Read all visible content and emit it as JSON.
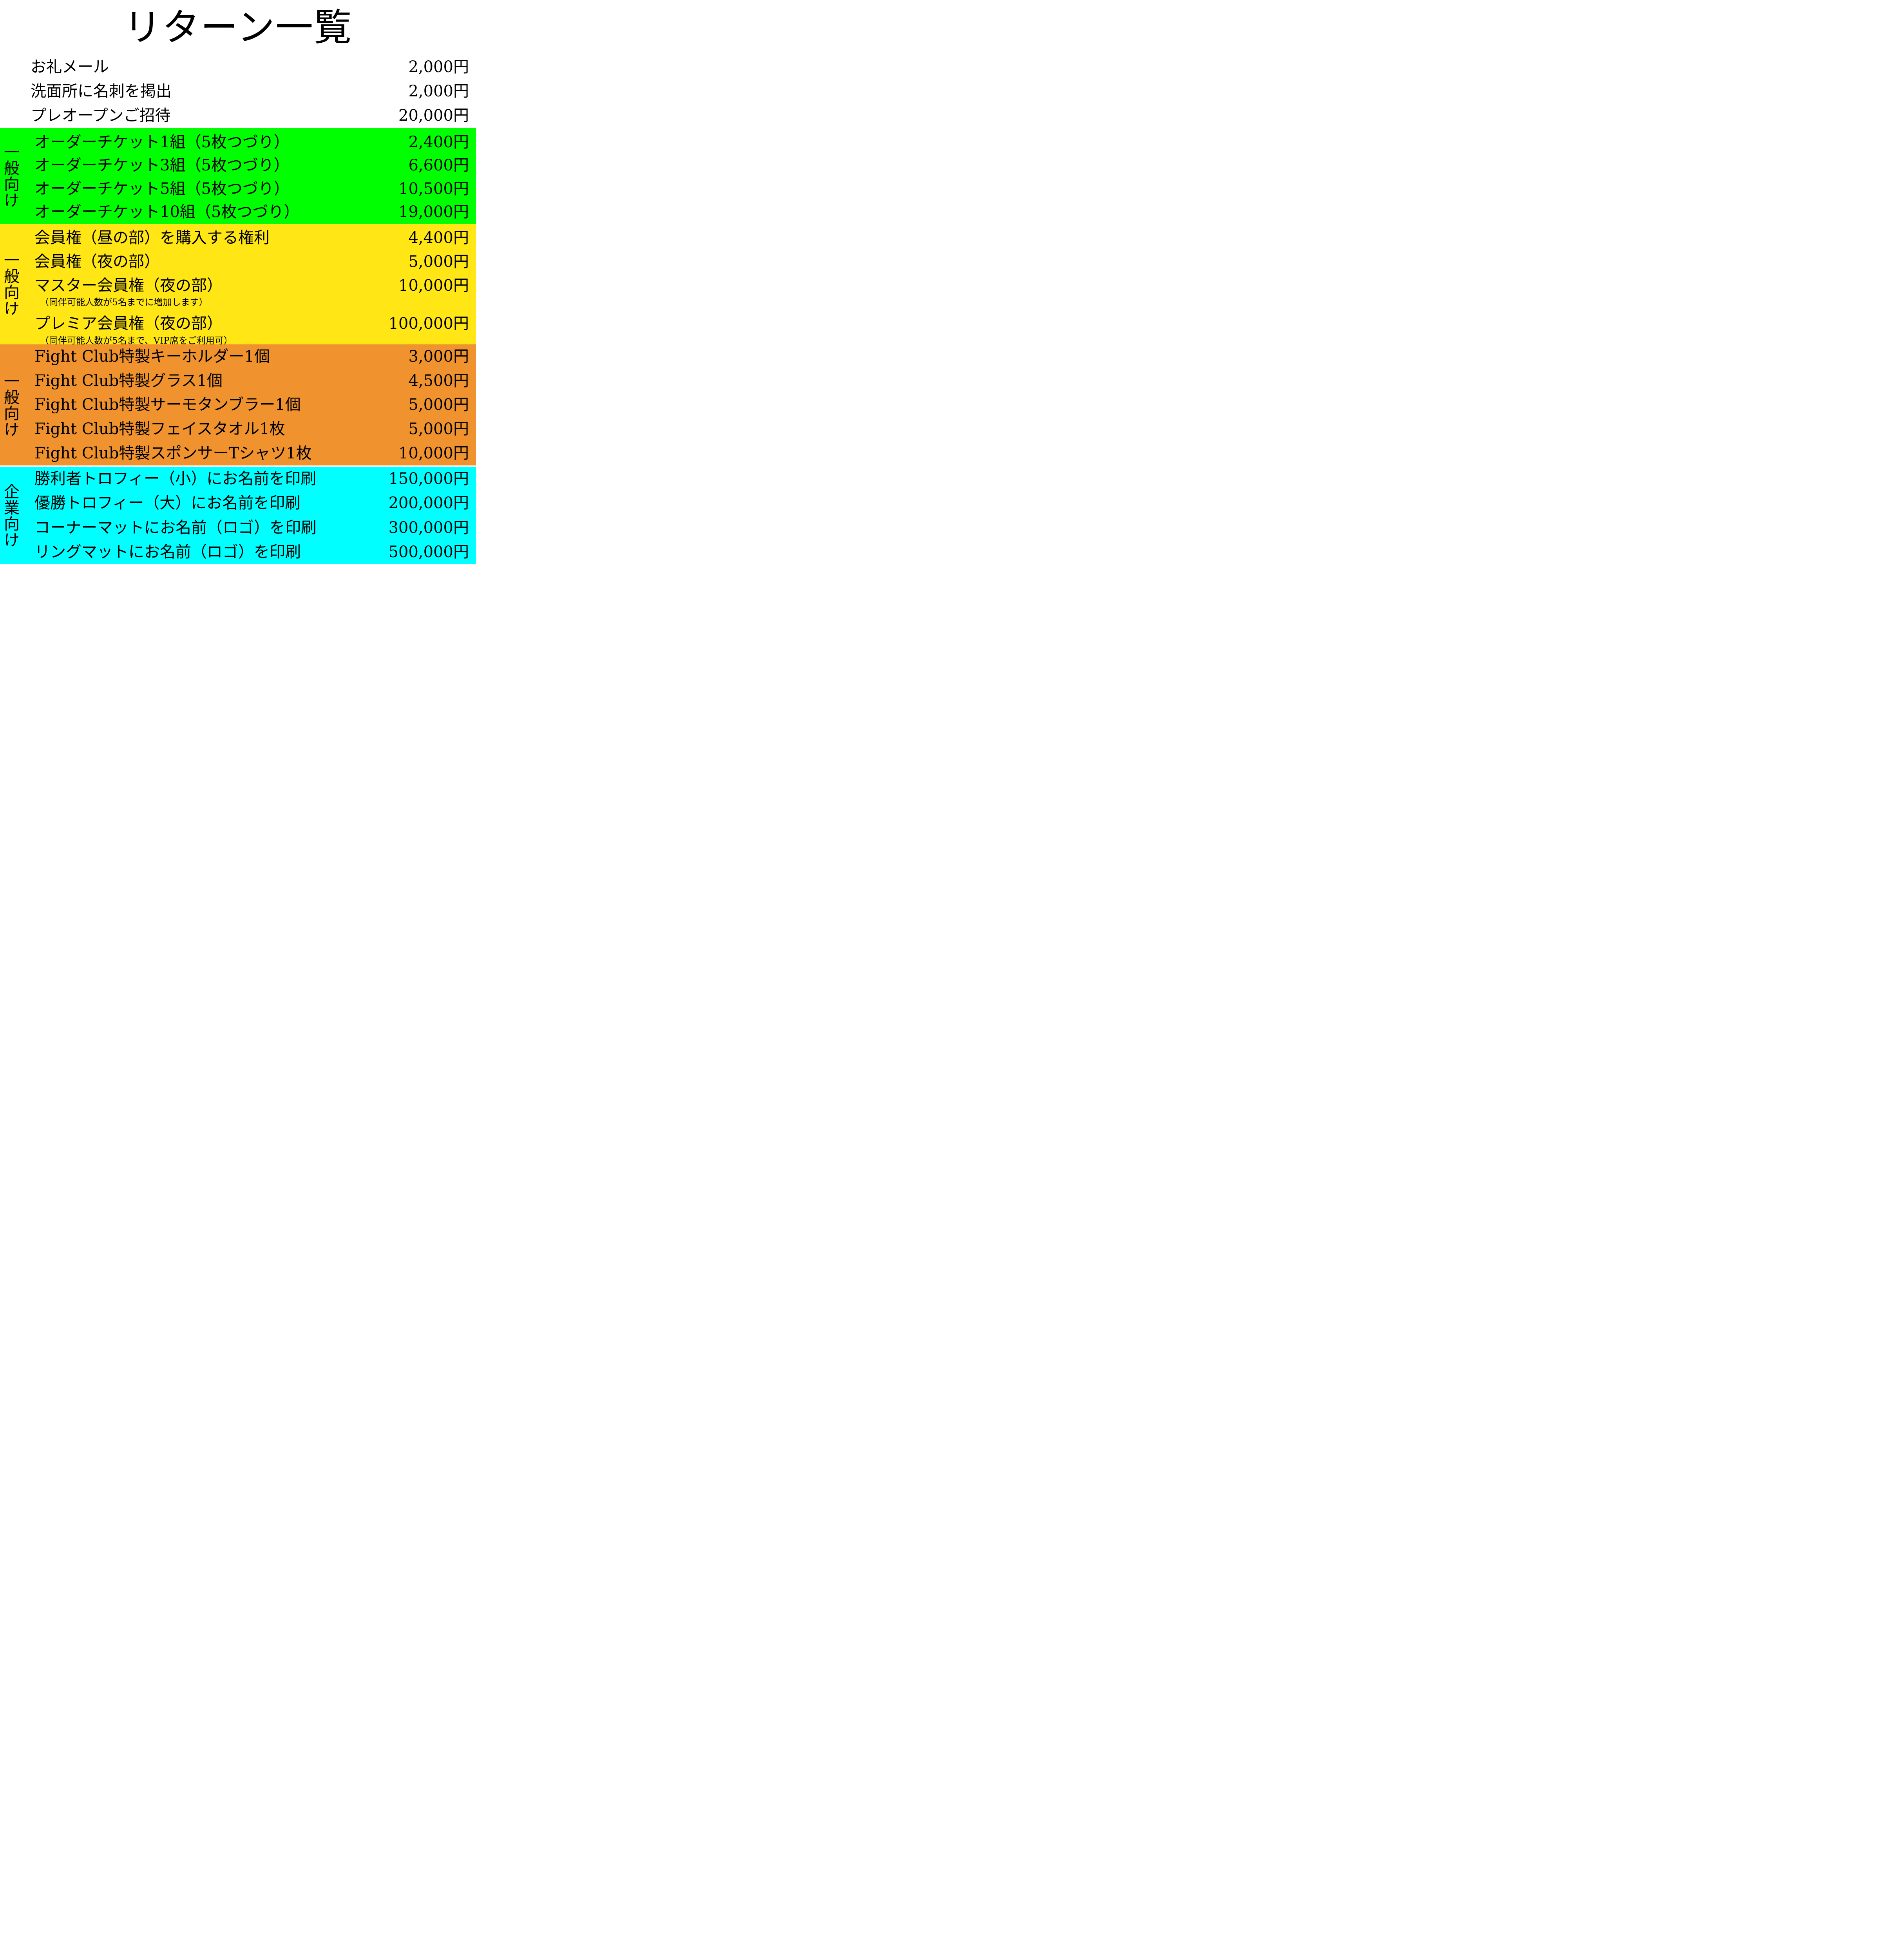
{
  "page": {
    "title": "リターン一覧",
    "ink_color": "#000000",
    "separator_color": "#FFFFFF"
  },
  "sections": [
    {
      "id": "intro",
      "audience": "",
      "bg": "#FFFFFF",
      "rows": [
        {
          "item": "お礼メール",
          "price": "2,000円"
        },
        {
          "item": "洗面所に名刺を掲出",
          "price": "2,000円"
        },
        {
          "item": "プレオープンご招待",
          "price": "20,000円"
        }
      ]
    },
    {
      "id": "general-tickets",
      "audience": "一般向け",
      "bg": "#00FF00",
      "rows": [
        {
          "item": "オーダーチケット1組（5枚つづり）",
          "price": "2,400円"
        },
        {
          "item": "オーダーチケット3組（5枚つづり）",
          "price": "6,600円"
        },
        {
          "item": "オーダーチケット5組（5枚つづり）",
          "price": "10,500円"
        },
        {
          "item": "オーダーチケット10組（5枚つづり）",
          "price": "19,000円"
        }
      ]
    },
    {
      "id": "general-membership",
      "audience": "一般向け",
      "bg": "#FFE614",
      "rows": [
        {
          "item": "会員権（昼の部）を購入する権利",
          "price": "4,400円"
        },
        {
          "item": "会員権（夜の部）",
          "price": "5,000円"
        },
        {
          "item": "マスター会員権（夜の部）",
          "price": "10,000円",
          "note": "（同伴可能人数が5名までに増加します）"
        },
        {
          "item": "プレミア会員権（夜の部）",
          "price": "100,000円",
          "note": "（同伴可能人数が5名まで、VIP席をご利用可）"
        }
      ]
    },
    {
      "id": "general-goods",
      "audience": "一般向け",
      "bg": "#F0922D",
      "rows": [
        {
          "item": "Fight Club特製キーホルダー1個",
          "price": "3,000円"
        },
        {
          "item": "Fight Club特製グラス1個",
          "price": "4,500円"
        },
        {
          "item": "Fight Club特製サーモタンブラー1個",
          "price": "5,000円"
        },
        {
          "item": "Fight Club特製フェイスタオル1枚",
          "price": "5,000円"
        },
        {
          "item": "Fight Club特製スポンサーTシャツ1枚",
          "price": "10,000円"
        }
      ]
    },
    {
      "id": "corporate",
      "audience": "企業向け",
      "bg": "#00FFFF",
      "rows": [
        {
          "item": "勝利者トロフィー（小）にお名前を印刷",
          "price": "150,000円"
        },
        {
          "item": "優勝トロフィー（大）にお名前を印刷",
          "price": "200,000円"
        },
        {
          "item": "コーナーマットにお名前（ロゴ）を印刷",
          "price": "300,000円"
        },
        {
          "item": "リングマットにお名前（ロゴ）を印刷",
          "price": "500,000円"
        }
      ]
    }
  ]
}
